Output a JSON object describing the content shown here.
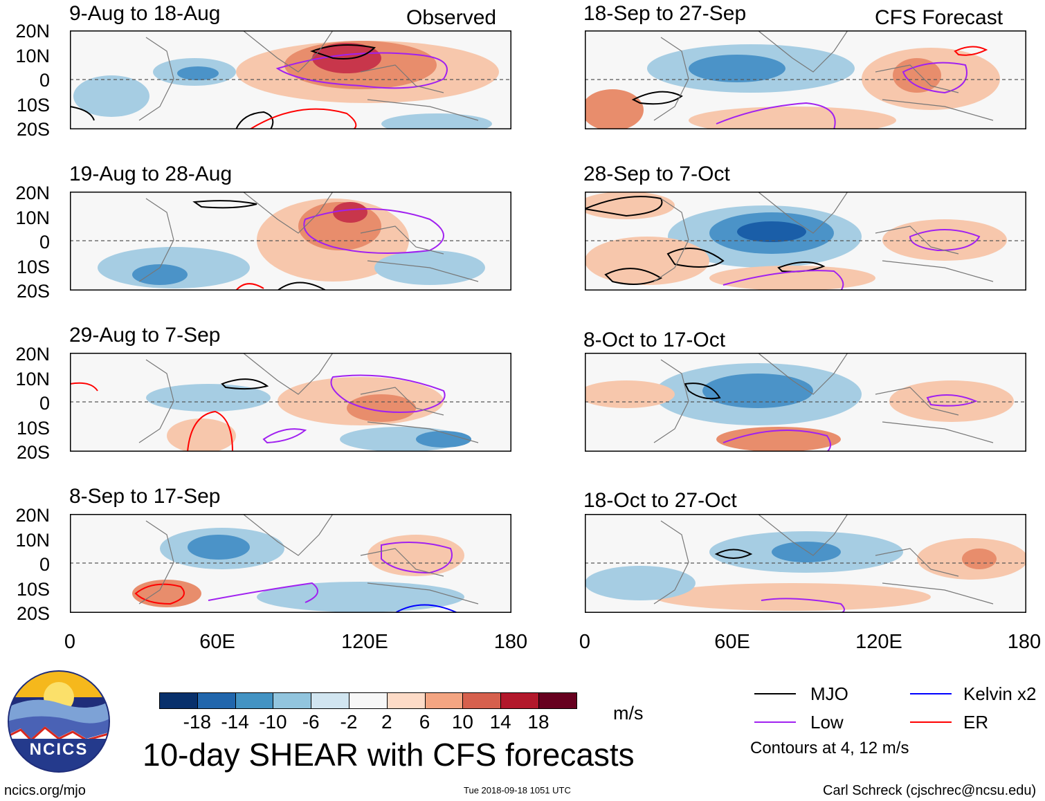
{
  "header": {
    "observed_label": "Observed",
    "forecast_label": "CFS Forecast"
  },
  "colors": {
    "mjo": "#000000",
    "low": "#a020f0",
    "kelvin": "#0000ff",
    "er": "#ff0000",
    "neg_strong": "#1a5ea8",
    "neg_mid": "#4b93c8",
    "neg_light": "#a6cde3",
    "pos_light": "#f7c7ac",
    "pos_mid": "#e88d6c",
    "pos_strong": "#c8364b"
  },
  "axes": {
    "y_labels": [
      "20N",
      "10N",
      "0",
      "10S",
      "20S"
    ],
    "x_labels": [
      "0",
      "60E",
      "120E",
      "180"
    ]
  },
  "panels": [
    {
      "title": "9-Aug to 18-Aug"
    },
    {
      "title": "19-Aug to 28-Aug"
    },
    {
      "title": "29-Aug to 7-Sep"
    },
    {
      "title": "8-Sep to 17-Sep"
    },
    {
      "title": "18-Sep to 27-Sep"
    },
    {
      "title": "28-Sep to 7-Oct"
    },
    {
      "title": "8-Oct to 17-Oct"
    },
    {
      "title": "18-Oct to 27-Oct"
    }
  ],
  "colorbar": {
    "colors": [
      "#08306b",
      "#2166ac",
      "#4393c3",
      "#92c5de",
      "#d1e5f0",
      "#f7f7f7",
      "#fddbc7",
      "#f4a582",
      "#d6604d",
      "#b2182b",
      "#67001f"
    ],
    "ticks": [
      "-18",
      "-14",
      "-10",
      "-6",
      "-2",
      "2",
      "6",
      "10",
      "14",
      "18"
    ],
    "unit": "m/s"
  },
  "legend": {
    "mjo": "MJO",
    "kelvin": "Kelvin x2",
    "low": "Low",
    "er": "ER",
    "contours_note": "Contours at 4, 12 m/s"
  },
  "footer": {
    "logo_text": "NCICS",
    "main_title": "10-day SHEAR with CFS forecasts",
    "url": "ncics.org/mjo",
    "timestamp": "Tue 2018-09-18 1051 UTC",
    "credit": "Carl Schreck (cjschrec@ncsu.edu)"
  }
}
